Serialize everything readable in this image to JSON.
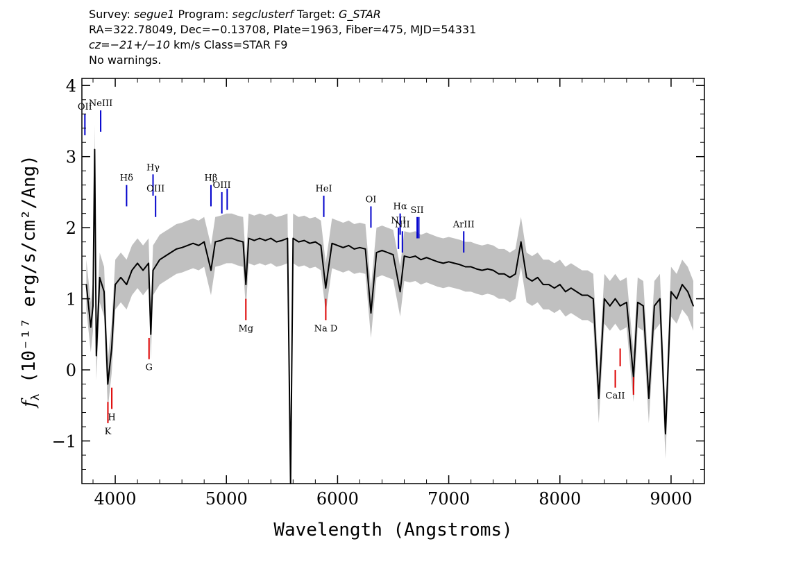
{
  "header": {
    "line1": {
      "survey_label": "Survey: ",
      "survey": "segue1",
      "program_label": " Program: ",
      "program": "segclusterf",
      "target_label": " Target: ",
      "target": "G_STAR"
    },
    "line2": "RA=322.78049, Dec=−0.13708, Plate=1963, Fiber=475, MJD=54331",
    "line3": {
      "cz": "cz=−21+/−10",
      "rest": " km/s Class=STAR F9"
    },
    "line4": "No warnings."
  },
  "chart_data": {
    "type": "line",
    "title": "",
    "xlabel": "Wavelength (Angstroms)",
    "ylabel_prefix": "f",
    "ylabel_sub": "λ",
    "ylabel_rest": " (10⁻¹⁷ erg/s/cm²/Ang)",
    "xlim": [
      3700,
      9300
    ],
    "ylim": [
      -1.6,
      4.1
    ],
    "xticks": [
      4000,
      5000,
      6000,
      7000,
      8000,
      9000
    ],
    "yticks": [
      -1,
      0,
      1,
      2,
      3,
      4
    ],
    "xtick_labels": [
      "4000",
      "5000",
      "6000",
      "7000",
      "8000",
      "9000"
    ],
    "ytick_labels": [
      "−1",
      "0",
      "1",
      "2",
      "3",
      "4"
    ],
    "grid": false,
    "colors": {
      "spectrum": "#000000",
      "error_band": "#c0c0c0",
      "emission": "#0000cc",
      "absorption": "#dd0000"
    },
    "series": [
      {
        "x": [
          3740,
          3780,
          3800,
          3815,
          3830,
          3860,
          3900,
          3933,
          3968,
          4000,
          4050,
          4102,
          4150,
          4200,
          4250,
          4300,
          4320,
          4340,
          4400,
          4450,
          4500,
          4550,
          4600,
          4650,
          4700,
          4750,
          4800,
          4861,
          4900,
          4950,
          5000,
          5050,
          5100,
          5150,
          5175,
          5200,
          5250,
          5300,
          5350,
          5400,
          5450,
          5500,
          5550,
          5577,
          5600,
          5650,
          5700,
          5750,
          5800,
          5850,
          5893,
          5950,
          6000,
          6050,
          6100,
          6150,
          6200,
          6250,
          6300,
          6350,
          6400,
          6450,
          6500,
          6563,
          6600,
          6650,
          6700,
          6750,
          6800,
          6850,
          6900,
          6950,
          7000,
          7050,
          7100,
          7150,
          7200,
          7250,
          7300,
          7350,
          7400,
          7450,
          7500,
          7550,
          7600,
          7650,
          7700,
          7750,
          7800,
          7850,
          7900,
          7950,
          8000,
          8050,
          8100,
          8150,
          8200,
          8250,
          8300,
          8350,
          8400,
          8450,
          8498,
          8542,
          8600,
          8662,
          8700,
          8750,
          8800,
          8850,
          8900,
          8950,
          9000,
          9050,
          9100,
          9150,
          9200
        ],
        "y": [
          1.2,
          0.6,
          0.9,
          3.1,
          0.2,
          1.3,
          1.1,
          -0.2,
          0.3,
          1.2,
          1.3,
          1.2,
          1.4,
          1.5,
          1.4,
          1.5,
          0.5,
          1.4,
          1.55,
          1.6,
          1.65,
          1.7,
          1.72,
          1.75,
          1.78,
          1.75,
          1.8,
          1.4,
          1.8,
          1.82,
          1.85,
          1.85,
          1.82,
          1.8,
          1.2,
          1.85,
          1.82,
          1.85,
          1.82,
          1.85,
          1.8,
          1.82,
          1.85,
          -1.6,
          1.85,
          1.8,
          1.82,
          1.78,
          1.8,
          1.75,
          1.15,
          1.78,
          1.75,
          1.72,
          1.75,
          1.7,
          1.72,
          1.7,
          0.8,
          1.65,
          1.68,
          1.65,
          1.62,
          1.1,
          1.6,
          1.58,
          1.6,
          1.55,
          1.58,
          1.55,
          1.52,
          1.5,
          1.52,
          1.5,
          1.48,
          1.45,
          1.45,
          1.42,
          1.4,
          1.42,
          1.4,
          1.35,
          1.35,
          1.3,
          1.35,
          1.8,
          1.3,
          1.25,
          1.3,
          1.2,
          1.2,
          1.15,
          1.2,
          1.1,
          1.15,
          1.1,
          1.05,
          1.05,
          1.0,
          -0.4,
          1.0,
          0.9,
          1.0,
          0.9,
          0.95,
          -0.1,
          0.95,
          0.9,
          -0.4,
          0.9,
          1.0,
          -0.9,
          1.1,
          1.0,
          1.2,
          1.1,
          0.9
        ]
      }
    ],
    "lines": [
      {
        "label": "OII",
        "x": 3727,
        "kind": "emission",
        "y_top": 3.6,
        "y_bottom": 3.3
      },
      {
        "label": "NeIII",
        "x": 3869,
        "kind": "emission",
        "y_top": 3.65,
        "y_bottom": 3.35
      },
      {
        "label": "Hδ",
        "x": 4102,
        "kind": "emission",
        "y_top": 2.6,
        "y_bottom": 2.3
      },
      {
        "label": "Hγ",
        "x": 4340,
        "kind": "emission",
        "y_top": 2.75,
        "y_bottom": 2.45
      },
      {
        "label": "OIII",
        "x": 4363,
        "kind": "emission",
        "y_top": 2.45,
        "y_bottom": 2.15
      },
      {
        "label": "Hβ",
        "x": 4861,
        "kind": "emission",
        "y_top": 2.6,
        "y_bottom": 2.3
      },
      {
        "label": "OIII",
        "x": 4959,
        "kind": "emission",
        "y_top": 2.5,
        "y_bottom": 2.2
      },
      {
        "label": "",
        "x": 5007,
        "kind": "emission",
        "y_top": 2.55,
        "y_bottom": 2.25
      },
      {
        "label": "HeI",
        "x": 5876,
        "kind": "emission",
        "y_top": 2.45,
        "y_bottom": 2.15
      },
      {
        "label": "OI",
        "x": 6300,
        "kind": "emission",
        "y_top": 2.3,
        "y_bottom": 2.0
      },
      {
        "label": "NII",
        "x": 6548,
        "kind": "emission",
        "y_top": 2.0,
        "y_bottom": 1.7
      },
      {
        "label": "Hα",
        "x": 6563,
        "kind": "emission",
        "y_top": 2.2,
        "y_bottom": 1.9
      },
      {
        "label": "NII",
        "x": 6583,
        "kind": "emission",
        "y_top": 1.95,
        "y_bottom": 1.65
      },
      {
        "label": "SII",
        "x": 6716,
        "kind": "emission",
        "y_top": 2.15,
        "y_bottom": 1.85
      },
      {
        "label": "",
        "x": 6731,
        "kind": "emission",
        "y_top": 2.15,
        "y_bottom": 1.85
      },
      {
        "label": "ArIII",
        "x": 7135,
        "kind": "emission",
        "y_top": 1.95,
        "y_bottom": 1.65
      },
      {
        "label": "K",
        "x": 3934,
        "kind": "absorption",
        "y_top": -0.45,
        "y_bottom": -0.75
      },
      {
        "label": "H",
        "x": 3969,
        "kind": "absorption",
        "y_top": -0.25,
        "y_bottom": -0.55
      },
      {
        "label": "G",
        "x": 4304,
        "kind": "absorption",
        "y_top": 0.45,
        "y_bottom": 0.15
      },
      {
        "label": "Mg",
        "x": 5175,
        "kind": "absorption",
        "y_top": 1.0,
        "y_bottom": 0.7
      },
      {
        "label": "Na D",
        "x": 5894,
        "kind": "absorption",
        "y_top": 1.0,
        "y_bottom": 0.7
      },
      {
        "label": "CaII",
        "x": 8498,
        "kind": "absorption",
        "y_top": -0.0,
        "y_bottom": -0.25
      },
      {
        "label": "",
        "x": 8542,
        "kind": "absorption",
        "y_top": 0.3,
        "y_bottom": 0.05
      },
      {
        "label": "",
        "x": 8662,
        "kind": "absorption",
        "y_top": -0.1,
        "y_bottom": -0.35
      }
    ]
  }
}
